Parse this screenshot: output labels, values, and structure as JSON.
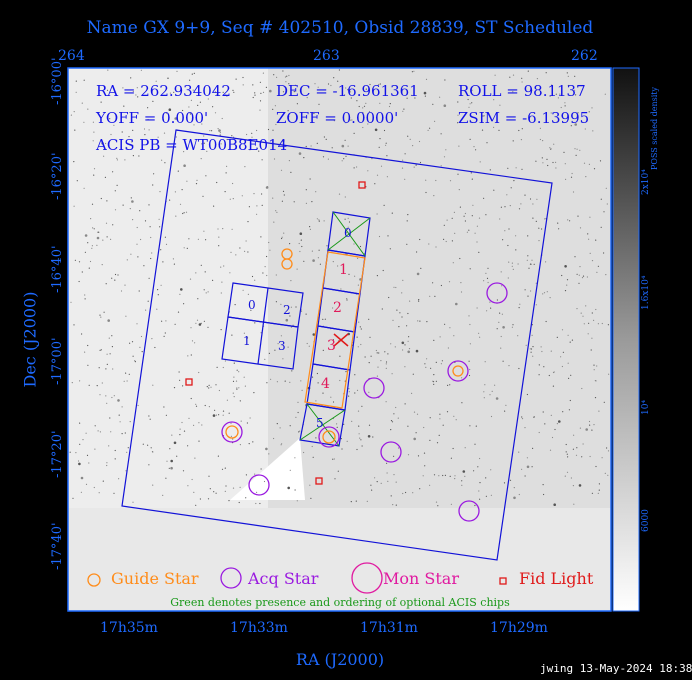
{
  "title": "Name GX 9+9, Seq # 402510, Obsid 28839, ST Scheduled",
  "top_ticks": [
    "264",
    "263",
    "262"
  ],
  "bottom_ticks": [
    "17h35m",
    "17h33m",
    "17h31m",
    "17h29m"
  ],
  "x_axis_label": "RA (J2000)",
  "y_axis_label": "Dec (J2000)",
  "y_ticks": [
    "-16°00'",
    "-16°20'",
    "-16°40'",
    "-17°00'",
    "-17°20'",
    "-17°40'"
  ],
  "info": {
    "ra": "RA = 262.934042",
    "dec": "DEC = -16.961361",
    "roll": "ROLL = 98.1137",
    "yoff": "YOFF =   0.000'",
    "zoff": "ZOFF =  0.0000'",
    "zsim": "ZSIM = -6.13995",
    "acis_pb": "ACIS PB = WT00B8E014"
  },
  "chip_labels": [
    "0",
    "1",
    "2",
    "3",
    "4",
    "5",
    "0",
    "1",
    "2",
    "3"
  ],
  "legend": {
    "guide": "Guide Star",
    "acq": "Acq Star",
    "mon": "Mon Star",
    "fid": "Fid Light"
  },
  "note": "Green denotes presence and ordering of optional ACIS chips",
  "footer": "jwing 13-May-2024 18:38",
  "colorbar": {
    "label": "POSS scaled density",
    "ticks": [
      "2x10⁴",
      "1.6x10⁴",
      "10⁴",
      "6000"
    ]
  },
  "colors": {
    "frame": "#1e6aff",
    "fov": "#1212d8",
    "guide": "#ff8c1a",
    "acq": "#9a1ae0",
    "mon": "#e01aa0",
    "fid": "#e01a1a",
    "optional_chip": "#189818",
    "orange_chip": "#ff8c1a"
  },
  "icons": {
    "guide": "orange-circle-icon",
    "acq": "purple-circle-icon",
    "mon": "magenta-circle-icon",
    "fid": "red-square-icon"
  }
}
